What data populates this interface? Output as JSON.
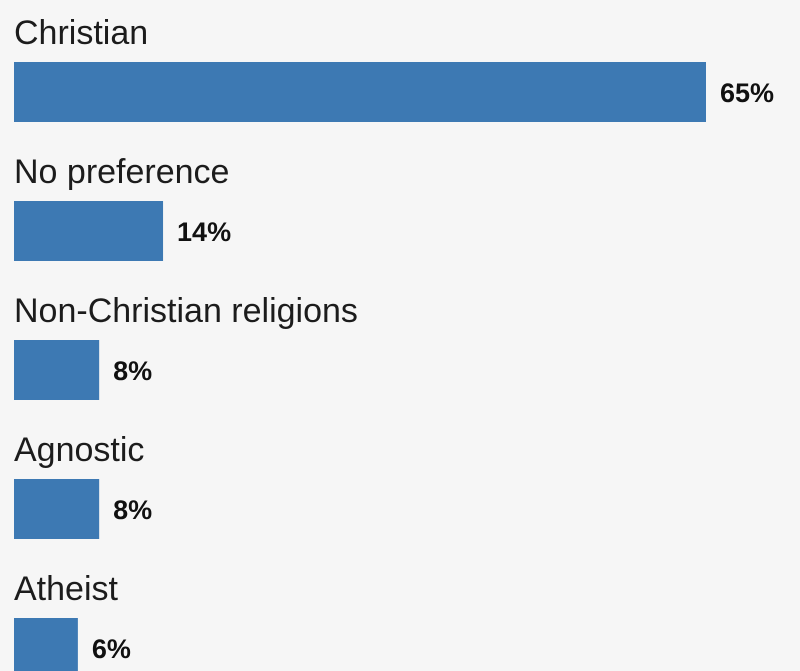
{
  "chart_data": {
    "type": "bar",
    "orientation": "horizontal",
    "categories": [
      "Christian",
      "No preference",
      "Non-Christian religions",
      "Agnostic",
      "Atheist"
    ],
    "values": [
      65,
      14,
      8,
      8,
      6
    ],
    "value_labels": [
      "65%",
      "14%",
      "8%",
      "8%",
      "6%"
    ],
    "unit": "%",
    "xlim": [
      0,
      65
    ],
    "bar_color": "#3d79b3",
    "grid": false,
    "legend": "none"
  }
}
